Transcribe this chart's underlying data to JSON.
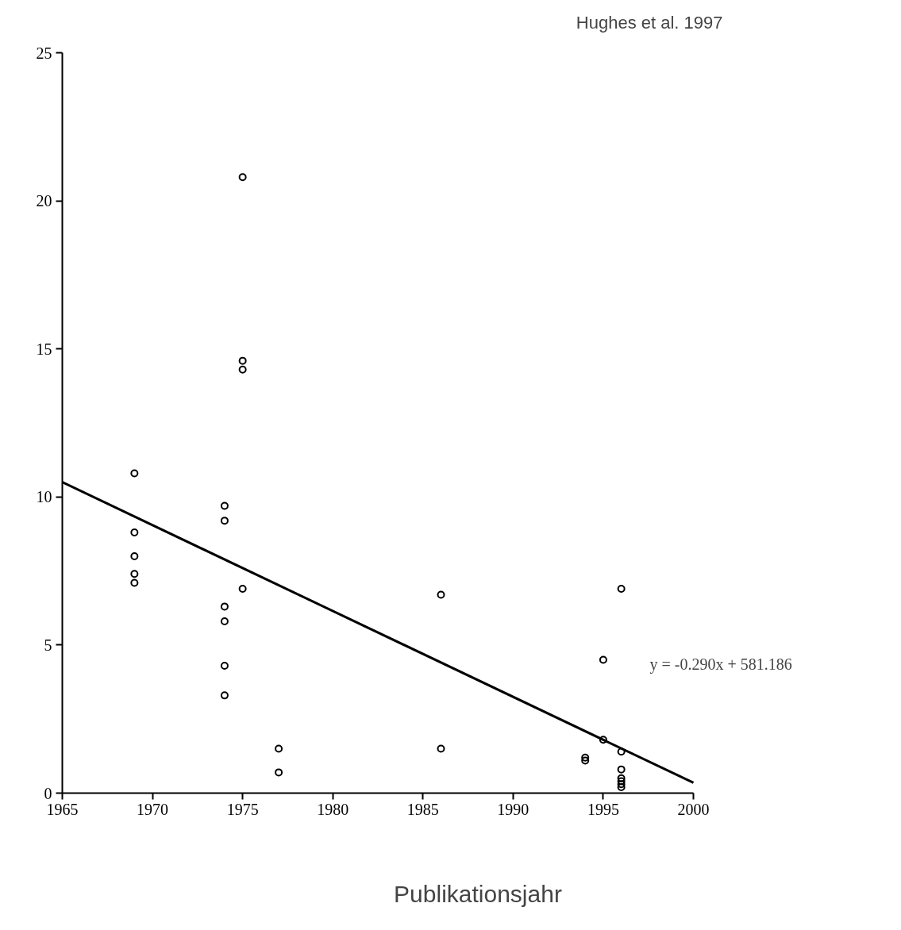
{
  "chart_data": {
    "type": "scatter",
    "xlabel": "Publikationsjahr",
    "annotations": [
      "Hughes et al. 1997",
      "y =  -0.290x + 581.186"
    ],
    "xlim": [
      1965,
      2000
    ],
    "ylim": [
      0,
      25
    ],
    "xticks": [
      1965,
      1970,
      1975,
      1980,
      1985,
      1990,
      1995,
      2000
    ],
    "yticks": [
      0,
      5,
      10,
      15,
      20,
      25
    ],
    "grid": false,
    "series": [
      {
        "marker": "circle",
        "color": "#000000",
        "x": [
          1969,
          1969,
          1969,
          1969,
          1969,
          1974,
          1974,
          1974,
          1974,
          1974,
          1974,
          1975,
          1975,
          1975,
          1975,
          1977,
          1977,
          1986,
          1986,
          1994,
          1994,
          1995,
          1995,
          1996,
          1996,
          1996,
          1996,
          1996,
          1996,
          1996
        ],
        "values": [
          10.8,
          8.8,
          8.0,
          7.4,
          7.1,
          9.7,
          9.2,
          6.3,
          5.8,
          4.3,
          3.3,
          20.8,
          14.6,
          14.3,
          6.9,
          1.5,
          0.7,
          6.7,
          1.5,
          1.2,
          1.1,
          4.5,
          1.8,
          6.9,
          1.4,
          0.8,
          0.5,
          0.4,
          0.3,
          0.2
        ]
      },
      {
        "type": "line",
        "marker": "none",
        "color": "#000000",
        "x": [
          1965,
          2000
        ],
        "values": [
          10.5,
          0.35
        ]
      }
    ]
  }
}
